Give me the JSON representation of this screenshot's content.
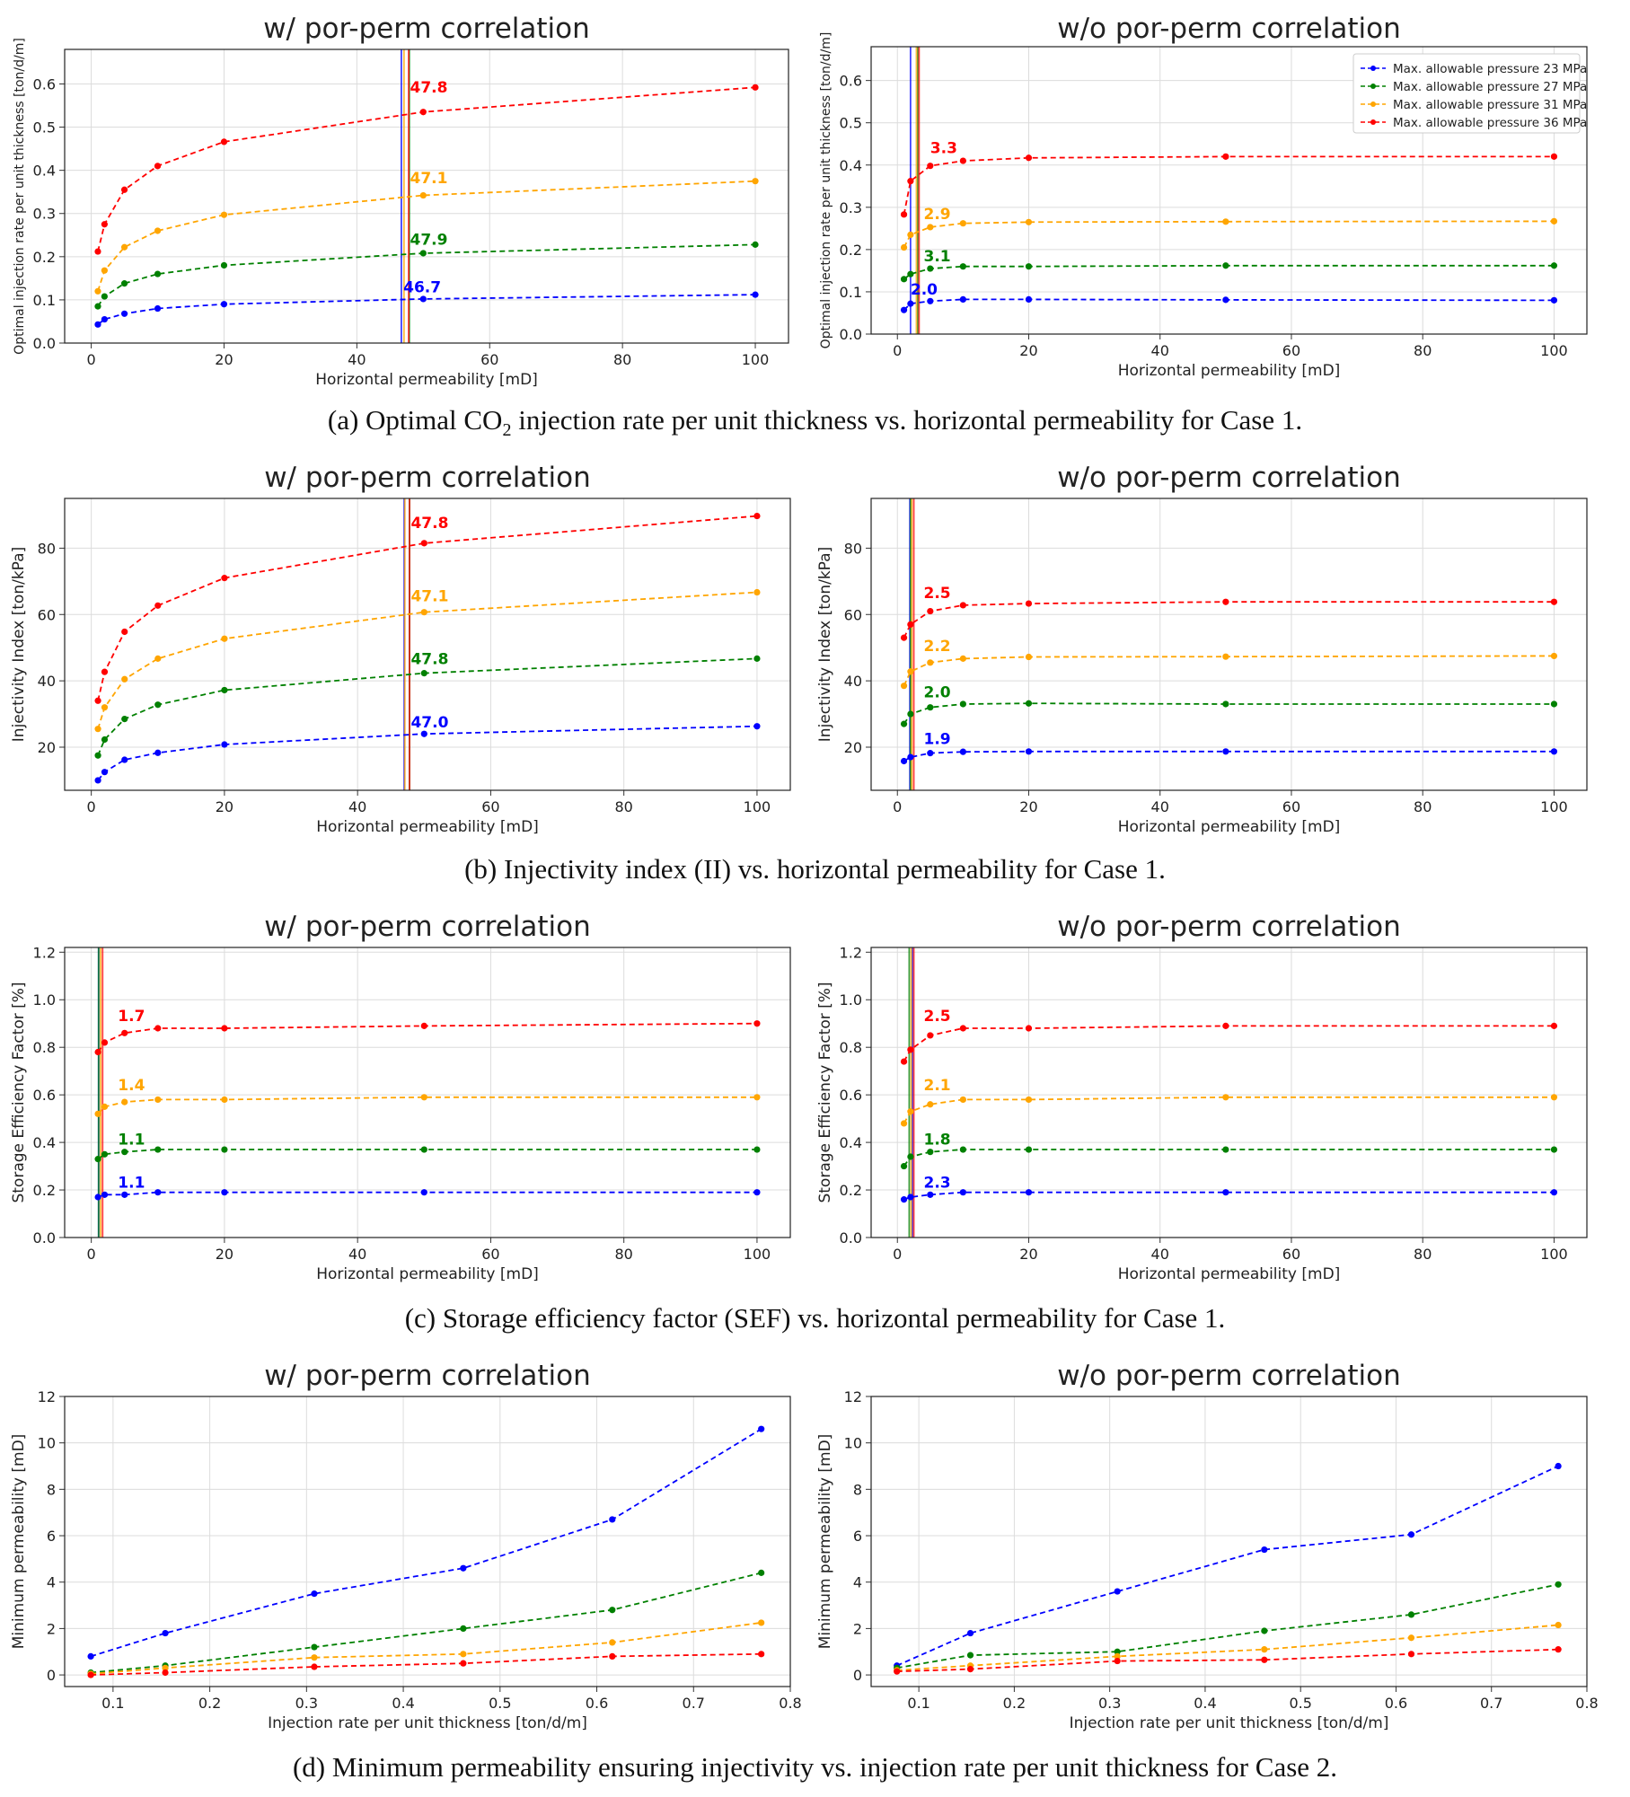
{
  "legend": [
    "Max. allowable pressure 23 MPa",
    "Max. allowable pressure 27 MPa",
    "Max. allowable pressure 31 MPa",
    "Max. allowable pressure 36 MPa"
  ],
  "colors": {
    "p23": "#0000ff",
    "p27": "#008000",
    "p31": "#ffa500",
    "p36": "#ff0000"
  },
  "captions": {
    "a": {
      "pre": "(a) Optimal CO",
      "sub": "2",
      "post": " injection rate per unit thickness vs. horizontal permeability for Case 1."
    },
    "b": "(b) Injectivity index (II) vs. horizontal permeability for Case 1.",
    "c": "(c) Storage efficiency factor (SEF) vs. horizontal permeability for Case 1.",
    "d": "(d) Minimum permeability ensuring injectivity vs. injection rate per unit thickness for Case 2."
  },
  "chart_data": [
    {
      "id": "a-left",
      "type": "line",
      "title": "w/ por-perm correlation",
      "xlabel": "Horizontal permeability [mD]",
      "ylabel": "Optimal injection rate per unit thickness [ton/d/m]",
      "xlim": [
        -4,
        105
      ],
      "ylim": [
        0,
        0.68
      ],
      "xticks": [
        0,
        20,
        40,
        60,
        80,
        100
      ],
      "yticks": [
        0.0,
        0.1,
        0.2,
        0.3,
        0.4,
        0.5,
        0.6
      ],
      "ydec": 1,
      "x": [
        1,
        2,
        5,
        10,
        20,
        50,
        100
      ],
      "series": [
        {
          "name": "Max. allowable pressure 23 MPa",
          "color": "#0000ff",
          "values": [
            0.043,
            0.055,
            0.068,
            0.08,
            0.09,
            0.102,
            0.112
          ],
          "vline": 46.7,
          "label": "46.7",
          "label_x": 47,
          "label_y": 0.118
        },
        {
          "name": "Max. allowable pressure 27 MPa",
          "color": "#008000",
          "values": [
            0.085,
            0.108,
            0.138,
            0.16,
            0.18,
            0.208,
            0.228
          ],
          "vline": 47.9,
          "label": "47.9",
          "label_x": 48,
          "label_y": 0.228
        },
        {
          "name": "Max. allowable pressure 31 MPa",
          "color": "#ffa500",
          "values": [
            0.12,
            0.168,
            0.222,
            0.26,
            0.297,
            0.342,
            0.375
          ],
          "vline": 47.1,
          "label": "47.1",
          "label_x": 48,
          "label_y": 0.37
        },
        {
          "name": "Max. allowable pressure 36 MPa",
          "color": "#ff0000",
          "values": [
            0.212,
            0.275,
            0.355,
            0.41,
            0.466,
            0.535,
            0.592
          ],
          "vline": 47.8,
          "label": "47.8",
          "label_x": 48,
          "label_y": 0.58
        }
      ]
    },
    {
      "id": "a-right",
      "type": "line",
      "title": "w/o por-perm correlation",
      "xlabel": "Horizontal permeability [mD]",
      "ylabel": "Optimal injection rate per unit thickness [ton/d/m]",
      "xlim": [
        -4,
        105
      ],
      "ylim": [
        0,
        0.68
      ],
      "xticks": [
        0,
        20,
        40,
        60,
        80,
        100
      ],
      "yticks": [
        0.0,
        0.1,
        0.2,
        0.3,
        0.4,
        0.5,
        0.6
      ],
      "ydec": 1,
      "x": [
        1,
        2,
        5,
        10,
        20,
        50,
        100
      ],
      "legend": true,
      "series": [
        {
          "name": "Max. allowable pressure 23 MPa",
          "color": "#0000ff",
          "values": [
            0.057,
            0.072,
            0.078,
            0.082,
            0.082,
            0.081,
            0.08
          ],
          "vline": 2.0,
          "label": "2.0",
          "label_x": 2,
          "label_y": 0.093
        },
        {
          "name": "Max. allowable pressure 27 MPa",
          "color": "#008000",
          "values": [
            0.13,
            0.142,
            0.155,
            0.16,
            0.16,
            0.162,
            0.162
          ],
          "vline": 3.1,
          "label": "3.1",
          "label_x": 4,
          "label_y": 0.172
        },
        {
          "name": "Max. allowable pressure 31 MPa",
          "color": "#ffa500",
          "values": [
            0.205,
            0.235,
            0.253,
            0.262,
            0.265,
            0.266,
            0.267
          ],
          "vline": 2.9,
          "label": "2.9",
          "label_x": 4,
          "label_y": 0.272
        },
        {
          "name": "Max. allowable pressure 36 MPa",
          "color": "#ff0000",
          "values": [
            0.283,
            0.362,
            0.398,
            0.41,
            0.417,
            0.42,
            0.42
          ],
          "vline": 3.3,
          "label": "3.3",
          "label_x": 5,
          "label_y": 0.428
        }
      ]
    },
    {
      "id": "b-left",
      "type": "line",
      "title": "w/ por-perm correlation",
      "xlabel": "Horizontal permeability [mD]",
      "ylabel": "Injectivity Index [ton/kPa]",
      "xlim": [
        -4,
        105
      ],
      "ylim": [
        7,
        95
      ],
      "xticks": [
        0,
        20,
        40,
        60,
        80,
        100
      ],
      "yticks": [
        20,
        40,
        60,
        80
      ],
      "ydec": 0,
      "x": [
        1,
        2,
        5,
        10,
        20,
        50,
        100
      ],
      "series": [
        {
          "name": "Max. allowable pressure 23 MPa",
          "color": "#0000ff",
          "values": [
            10,
            12.5,
            16.2,
            18.3,
            20.8,
            24,
            26.3
          ],
          "vline": 47.0,
          "label": "47.0",
          "label_x": 48,
          "label_y": 26
        },
        {
          "name": "Max. allowable pressure 27 MPa",
          "color": "#008000",
          "values": [
            17.5,
            22.3,
            28.5,
            32.8,
            37.2,
            42.3,
            46.7
          ],
          "vline": 47.8,
          "label": "47.8",
          "label_x": 48,
          "label_y": 45
        },
        {
          "name": "Max. allowable pressure 31 MPa",
          "color": "#ffa500",
          "values": [
            25.5,
            32,
            40.5,
            46.7,
            52.7,
            60.7,
            66.7
          ],
          "vline": 47.1,
          "label": "47.1",
          "label_x": 48,
          "label_y": 64
        },
        {
          "name": "Max. allowable pressure 36 MPa",
          "color": "#ff0000",
          "values": [
            34,
            42.7,
            54.8,
            62.7,
            71,
            81.5,
            89.7
          ],
          "vline": 47.8,
          "label": "47.8",
          "label_x": 48,
          "label_y": 86
        }
      ]
    },
    {
      "id": "b-right",
      "type": "line",
      "title": "w/o por-perm correlation",
      "xlabel": "Horizontal permeability [mD]",
      "ylabel": "Injectivity Index [ton/kPa]",
      "xlim": [
        -4,
        105
      ],
      "ylim": [
        7,
        95
      ],
      "xticks": [
        0,
        20,
        40,
        60,
        80,
        100
      ],
      "yticks": [
        20,
        40,
        60,
        80
      ],
      "ydec": 0,
      "x": [
        1,
        2,
        5,
        10,
        20,
        50,
        100
      ],
      "series": [
        {
          "name": "Max. allowable pressure 23 MPa",
          "color": "#0000ff",
          "values": [
            15.8,
            17,
            18.2,
            18.6,
            18.7,
            18.7,
            18.7
          ],
          "vline": 1.9,
          "label": "1.9",
          "label_x": 4,
          "label_y": 21
        },
        {
          "name": "Max. allowable pressure 27 MPa",
          "color": "#008000",
          "values": [
            27,
            30,
            32,
            33,
            33.2,
            33,
            33
          ],
          "vline": 2.0,
          "label": "2.0",
          "label_x": 4,
          "label_y": 35
        },
        {
          "name": "Max. allowable pressure 31 MPa",
          "color": "#ffa500",
          "values": [
            38.5,
            42.8,
            45.5,
            46.7,
            47.2,
            47.3,
            47.5
          ],
          "vline": 2.2,
          "label": "2.2",
          "label_x": 4,
          "label_y": 49
        },
        {
          "name": "Max. allowable pressure 36 MPa",
          "color": "#ff0000",
          "values": [
            53,
            57,
            61,
            62.8,
            63.3,
            63.8,
            63.8
          ],
          "vline": 2.5,
          "label": "2.5",
          "label_x": 4,
          "label_y": 65
        }
      ]
    },
    {
      "id": "c-left",
      "type": "line",
      "title": "w/ por-perm correlation",
      "xlabel": "Horizontal permeability [mD]",
      "ylabel": "Storage Efficiency Factor [%]",
      "xlim": [
        -4,
        105
      ],
      "ylim": [
        0,
        1.22
      ],
      "xticks": [
        0,
        20,
        40,
        60,
        80,
        100
      ],
      "yticks": [
        0.0,
        0.2,
        0.4,
        0.6,
        0.8,
        1.0,
        1.2
      ],
      "ydec": 1,
      "x": [
        1,
        2,
        5,
        10,
        20,
        50,
        100
      ],
      "series": [
        {
          "name": "Max. allowable pressure 23 MPa",
          "color": "#0000ff",
          "values": [
            0.17,
            0.18,
            0.18,
            0.19,
            0.19,
            0.19,
            0.19
          ],
          "vline": 1.1,
          "label": "1.1",
          "label_x": 4,
          "label_y": 0.21
        },
        {
          "name": "Max. allowable pressure 27 MPa",
          "color": "#008000",
          "values": [
            0.33,
            0.35,
            0.36,
            0.37,
            0.37,
            0.37,
            0.37
          ],
          "vline": 1.1,
          "label": "1.1",
          "label_x": 4,
          "label_y": 0.39
        },
        {
          "name": "Max. allowable pressure 31 MPa",
          "color": "#ffa500",
          "values": [
            0.52,
            0.55,
            0.57,
            0.58,
            0.58,
            0.59,
            0.59
          ],
          "vline": 1.4,
          "label": "1.4",
          "label_x": 4,
          "label_y": 0.62
        },
        {
          "name": "Max. allowable pressure 36 MPa",
          "color": "#ff0000",
          "values": [
            0.78,
            0.82,
            0.86,
            0.88,
            0.88,
            0.89,
            0.9
          ],
          "vline": 1.7,
          "label": "1.7",
          "label_x": 4,
          "label_y": 0.91
        }
      ]
    },
    {
      "id": "c-right",
      "type": "line",
      "title": "w/o por-perm correlation",
      "xlabel": "Horizontal permeability [mD]",
      "ylabel": "Storage Efficiency Factor [%]",
      "xlim": [
        -4,
        105
      ],
      "ylim": [
        0,
        1.22
      ],
      "xticks": [
        0,
        20,
        40,
        60,
        80,
        100
      ],
      "yticks": [
        0.0,
        0.2,
        0.4,
        0.6,
        0.8,
        1.0,
        1.2
      ],
      "ydec": 1,
      "x": [
        1,
        2,
        5,
        10,
        20,
        50,
        100
      ],
      "series": [
        {
          "name": "Max. allowable pressure 23 MPa",
          "color": "#0000ff",
          "values": [
            0.16,
            0.17,
            0.18,
            0.19,
            0.19,
            0.19,
            0.19
          ],
          "vline": 2.3,
          "label": "2.3",
          "label_x": 4,
          "label_y": 0.21
        },
        {
          "name": "Max. allowable pressure 27 MPa",
          "color": "#008000",
          "values": [
            0.3,
            0.34,
            0.36,
            0.37,
            0.37,
            0.37,
            0.37
          ],
          "vline": 1.8,
          "label": "1.8",
          "label_x": 4,
          "label_y": 0.39
        },
        {
          "name": "Max. allowable pressure 31 MPa",
          "color": "#ffa500",
          "values": [
            0.48,
            0.53,
            0.56,
            0.58,
            0.58,
            0.59,
            0.59
          ],
          "vline": 2.1,
          "label": "2.1",
          "label_x": 4,
          "label_y": 0.62
        },
        {
          "name": "Max. allowable pressure 36 MPa",
          "color": "#ff0000",
          "values": [
            0.74,
            0.79,
            0.85,
            0.88,
            0.88,
            0.89,
            0.89
          ],
          "vline": 2.5,
          "label": "2.5",
          "label_x": 4,
          "label_y": 0.91
        }
      ]
    },
    {
      "id": "d-left",
      "type": "line",
      "title": "w/ por-perm correlation",
      "xlabel": "Injection rate per unit thickness [ton/d/m]",
      "ylabel": "Minimum permeability [mD]",
      "xlim": [
        0.05,
        0.8
      ],
      "ylim": [
        -0.5,
        12
      ],
      "xticks": [
        0.1,
        0.2,
        0.3,
        0.4,
        0.5,
        0.6,
        0.7,
        0.8
      ],
      "yticks": [
        0,
        2,
        4,
        6,
        8,
        10,
        12
      ],
      "ydec": 0,
      "xdec": 1,
      "x": [
        0.077,
        0.154,
        0.308,
        0.462,
        0.616,
        0.77
      ],
      "series": [
        {
          "name": "Max. allowable pressure 23 MPa",
          "color": "#0000ff",
          "values": [
            0.8,
            1.8,
            3.5,
            4.6,
            6.7,
            10.6
          ]
        },
        {
          "name": "Max. allowable pressure 27 MPa",
          "color": "#008000",
          "values": [
            0.1,
            0.4,
            1.2,
            2.0,
            2.8,
            4.4
          ]
        },
        {
          "name": "Max. allowable pressure 31 MPa",
          "color": "#ffa500",
          "values": [
            0.05,
            0.3,
            0.75,
            0.9,
            1.4,
            2.25
          ]
        },
        {
          "name": "Max. allowable pressure 36 MPa",
          "color": "#ff0000",
          "values": [
            0.0,
            0.1,
            0.35,
            0.5,
            0.8,
            0.9
          ]
        }
      ]
    },
    {
      "id": "d-right",
      "type": "line",
      "title": "w/o por-perm correlation",
      "xlabel": "Injection rate per unit thickness [ton/d/m]",
      "ylabel": "Minimum permeability [mD]",
      "xlim": [
        0.05,
        0.8
      ],
      "ylim": [
        -0.5,
        12
      ],
      "xticks": [
        0.1,
        0.2,
        0.3,
        0.4,
        0.5,
        0.6,
        0.7,
        0.8
      ],
      "yticks": [
        0,
        2,
        4,
        6,
        8,
        10,
        12
      ],
      "ydec": 0,
      "xdec": 1,
      "x": [
        0.077,
        0.154,
        0.308,
        0.462,
        0.616,
        0.77
      ],
      "series": [
        {
          "name": "Max. allowable pressure 23 MPa",
          "color": "#0000ff",
          "values": [
            0.4,
            1.8,
            3.6,
            5.4,
            6.05,
            9.0
          ]
        },
        {
          "name": "Max. allowable pressure 27 MPa",
          "color": "#008000",
          "values": [
            0.3,
            0.85,
            1.0,
            1.9,
            2.6,
            3.9
          ]
        },
        {
          "name": "Max. allowable pressure 31 MPa",
          "color": "#ffa500",
          "values": [
            0.2,
            0.4,
            0.8,
            1.1,
            1.6,
            2.15
          ]
        },
        {
          "name": "Max. allowable pressure 36 MPa",
          "color": "#ff0000",
          "values": [
            0.15,
            0.25,
            0.6,
            0.65,
            0.9,
            1.1
          ]
        }
      ]
    }
  ]
}
